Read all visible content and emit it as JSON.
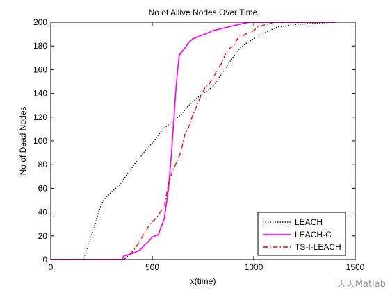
{
  "chart_data": {
    "type": "line",
    "title": "No of Allive Nodes Over Time",
    "xlabel": "x(time)",
    "ylabel": "No of Dead Nodes",
    "xlim": [
      0,
      1500
    ],
    "ylim": [
      0,
      200
    ],
    "xticks": [
      0,
      500,
      1000,
      1500
    ],
    "yticks": [
      0,
      20,
      40,
      60,
      80,
      100,
      120,
      140,
      160,
      180,
      200
    ],
    "grid": false,
    "legend_position": "bottom-right",
    "series": [
      {
        "name": "LEACH",
        "color": "#000000",
        "style": "dotted",
        "x": [
          0,
          160,
          170,
          185,
          200,
          215,
          230,
          250,
          270,
          300,
          340,
          380,
          410,
          440,
          470,
          500,
          530,
          560,
          600,
          640,
          680,
          720,
          760,
          800,
          840,
          880,
          920,
          960,
          1000,
          1040,
          1080,
          1100,
          1120,
          1200,
          1300,
          1400
        ],
        "y": [
          0,
          0,
          5,
          12,
          20,
          28,
          37,
          47,
          52,
          57,
          63,
          73,
          80,
          86,
          93,
          98,
          105,
          111,
          116,
          122,
          130,
          136,
          141,
          146,
          156,
          166,
          176,
          182,
          186,
          190,
          193,
          195,
          196,
          198,
          199,
          200
        ]
      },
      {
        "name": "LEACH-C",
        "color": "#ff00ff",
        "style": "solid",
        "x": [
          0,
          350,
          360,
          400,
          440,
          460,
          480,
          500,
          530,
          560,
          580,
          595,
          605,
          615,
          625,
          633,
          640,
          650,
          660,
          680,
          700,
          730,
          760,
          800,
          850,
          900,
          950,
          980,
          1000,
          1100,
          1200,
          1300,
          1400
        ],
        "y": [
          0,
          0,
          3,
          5,
          8,
          12,
          15,
          19,
          21,
          35,
          60,
          90,
          115,
          140,
          160,
          172,
          174,
          176,
          178,
          183,
          186,
          188,
          190,
          193,
          195,
          197,
          199,
          200,
          200,
          200,
          200,
          200,
          200
        ]
      },
      {
        "name": "TS-I-LEACH",
        "color": "#ff0000",
        "style": "dashdot",
        "x": [
          0,
          360,
          380,
          400,
          430,
          460,
          490,
          520,
          560,
          580,
          600,
          620,
          640,
          660,
          680,
          700,
          720,
          740,
          760,
          780,
          800,
          820,
          840,
          860,
          880,
          900,
          920,
          940,
          960,
          980,
          1000,
          1020,
          1040,
          1060,
          1080,
          1100,
          1150,
          1200,
          1300,
          1400
        ],
        "y": [
          0,
          0,
          3,
          6,
          13,
          22,
          30,
          35,
          45,
          64,
          75,
          82,
          90,
          105,
          112,
          122,
          130,
          138,
          145,
          148,
          153,
          160,
          165,
          173,
          178,
          180,
          186,
          188,
          190,
          191,
          193,
          196,
          197,
          198,
          199,
          200,
          200,
          200,
          200,
          200
        ]
      }
    ]
  },
  "watermark": {
    "text": "天天Matlab"
  }
}
